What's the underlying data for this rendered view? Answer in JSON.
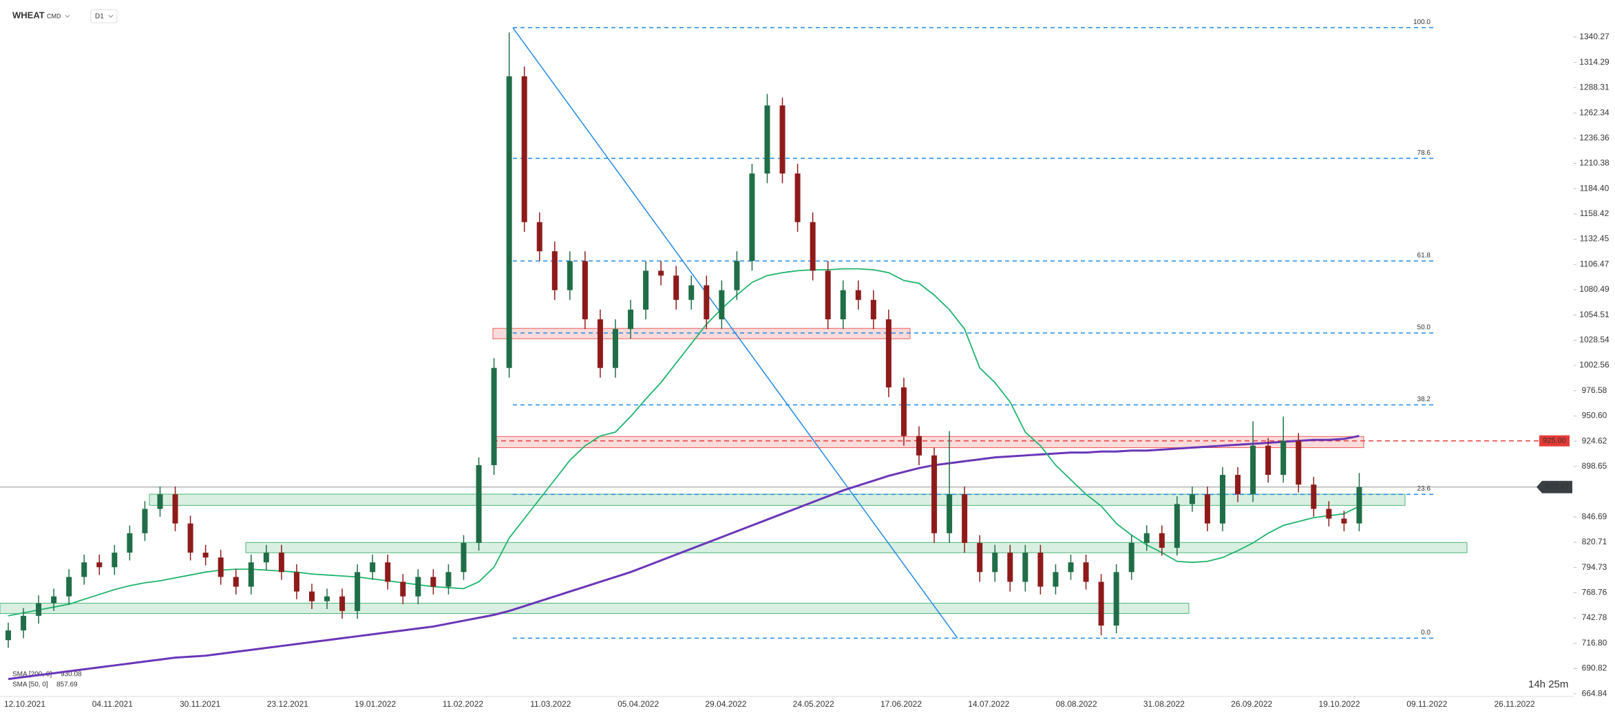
{
  "header": {
    "symbol": "WHEAT",
    "market": "CMD",
    "interval": "D1"
  },
  "chart_data": {
    "type": "candlestick",
    "x_labels": [
      "12.10.2021",
      "04.11.2021",
      "30.11.2021",
      "23.12.2021",
      "19.01.2022",
      "11.02.2022",
      "11.03.2022",
      "05.04.2022",
      "29.04.2022",
      "24.05.2022",
      "17.06.2022",
      "14.07.2022",
      "08.08.2022",
      "31.08.2022",
      "26.09.2022",
      "19.10.2022",
      "09.11.2022",
      "26.11.2022"
    ],
    "ylim": [
      662.1,
      1378.5
    ],
    "yticks": [
      664.84,
      690.82,
      {
        "value": 716.8,
        "label": "716.80"
      },
      742.78,
      768.76,
      794.73,
      820.71,
      846.69,
      898.65,
      924.62,
      {
        "value": 950.6,
        "label": "950.60"
      },
      976.58,
      1002.56,
      1028.54,
      1054.51,
      1080.49,
      1106.47,
      1132.45,
      1158.42,
      {
        "value": 1184.4,
        "label": "1184.40"
      },
      1210.38,
      1236.36,
      1262.34,
      1288.31,
      1314.29,
      1340.27
    ],
    "up_color": "#1f6e47",
    "down_color": "#8e1b1b",
    "open": [
      720,
      730,
      745,
      758,
      765,
      785,
      800,
      795,
      810,
      830,
      855,
      870,
      840,
      810,
      805,
      785,
      775,
      800,
      810,
      790,
      770,
      760,
      765,
      750,
      790,
      800,
      780,
      765,
      785,
      775,
      790,
      820,
      900,
      1000,
      1300,
      1150,
      1120,
      1080,
      1110,
      1050,
      1000,
      1040,
      1060,
      1100,
      1095,
      1070,
      1085,
      1050,
      1080,
      1110,
      1200,
      1270,
      1200,
      1150,
      1100,
      1050,
      1080,
      1070,
      1050,
      980,
      930,
      910,
      830,
      870,
      820,
      790,
      810,
      780,
      810,
      775,
      790,
      800,
      780,
      735,
      790,
      820,
      830,
      815,
      860,
      870,
      840,
      890,
      870,
      920,
      890,
      925,
      880,
      855,
      845,
      840
    ],
    "high": [
      738,
      753,
      766,
      773,
      793,
      808,
      808,
      818,
      838,
      863,
      878,
      878,
      848,
      818,
      813,
      793,
      808,
      818,
      818,
      798,
      778,
      773,
      773,
      798,
      808,
      808,
      788,
      793,
      793,
      798,
      828,
      908,
      1010,
      1345,
      1310,
      1160,
      1130,
      1120,
      1120,
      1060,
      1050,
      1070,
      1110,
      1110,
      1105,
      1095,
      1095,
      1090,
      1120,
      1210,
      1282,
      1278,
      1210,
      1160,
      1110,
      1090,
      1090,
      1080,
      1060,
      990,
      940,
      918,
      935,
      878,
      828,
      818,
      818,
      818,
      818,
      798,
      808,
      808,
      788,
      798,
      828,
      838,
      838,
      868,
      878,
      878,
      898,
      898,
      945,
      928,
      950,
      933,
      888,
      863,
      853,
      892
    ],
    "low": [
      712,
      722,
      737,
      750,
      757,
      777,
      787,
      787,
      802,
      822,
      847,
      832,
      802,
      797,
      777,
      767,
      767,
      792,
      782,
      762,
      752,
      752,
      742,
      742,
      782,
      772,
      757,
      757,
      767,
      767,
      782,
      812,
      890,
      990,
      1140,
      1110,
      1070,
      1070,
      1040,
      990,
      990,
      1030,
      1050,
      1085,
      1060,
      1060,
      1040,
      1040,
      1070,
      1100,
      1190,
      1190,
      1140,
      1090,
      1040,
      1040,
      1060,
      1040,
      970,
      920,
      900,
      820,
      820,
      810,
      780,
      780,
      770,
      770,
      767,
      767,
      782,
      772,
      725,
      727,
      782,
      812,
      807,
      807,
      852,
      832,
      832,
      862,
      862,
      882,
      882,
      872,
      847,
      837,
      832,
      832
    ],
    "close": [
      730,
      745,
      758,
      765,
      785,
      800,
      795,
      810,
      830,
      855,
      870,
      840,
      810,
      805,
      785,
      775,
      800,
      810,
      790,
      770,
      760,
      765,
      750,
      790,
      800,
      780,
      765,
      785,
      775,
      790,
      820,
      900,
      1000,
      1300,
      1150,
      1120,
      1080,
      1110,
      1050,
      1000,
      1040,
      1060,
      1100,
      1095,
      1070,
      1085,
      1050,
      1080,
      1110,
      1200,
      1270,
      1200,
      1150,
      1100,
      1050,
      1080,
      1070,
      1050,
      980,
      930,
      910,
      830,
      870,
      820,
      790,
      810,
      780,
      810,
      775,
      790,
      800,
      780,
      735,
      790,
      820,
      830,
      815,
      860,
      870,
      840,
      890,
      870,
      920,
      890,
      925,
      880,
      855,
      845,
      840,
      877.47
    ],
    "series": [
      {
        "name": "SMA [200, 0]",
        "color": "#6a35b8",
        "values": [
          680,
          682,
          684,
          686,
          688,
          690,
          692,
          694,
          696,
          698,
          700,
          702,
          703,
          704,
          706,
          708,
          710,
          712,
          714,
          716,
          718,
          720,
          722,
          724,
          726,
          728,
          730,
          732,
          734,
          737,
          740,
          743,
          746,
          750,
          755,
          760,
          765,
          770,
          775,
          780,
          785,
          790,
          796,
          802,
          808,
          814,
          820,
          826,
          832,
          838,
          844,
          850,
          856,
          862,
          868,
          874,
          879,
          884,
          889,
          893,
          897,
          900,
          902,
          904,
          906,
          908,
          909,
          910,
          911,
          912,
          913,
          913,
          914,
          914,
          915,
          915,
          916,
          917,
          918,
          919,
          920,
          921,
          922,
          923,
          924,
          925,
          926,
          926,
          927,
          930.08
        ]
      },
      {
        "name": "SMA [50, 0]",
        "color": "#1db36b",
        "values": [
          745,
          748,
          751,
          754,
          757,
          762,
          767,
          772,
          776,
          779,
          781,
          784,
          787,
          790,
          792,
          793,
          793,
          792,
          791,
          790,
          788,
          787,
          786,
          785,
          783,
          781,
          779,
          777,
          775,
          774,
          773,
          780,
          795,
          825,
          845,
          865,
          885,
          905,
          920,
          930,
          934,
          950,
          968,
          985,
          1005,
          1025,
          1045,
          1061,
          1075,
          1088,
          1095,
          1098,
          1100,
          1101,
          1101,
          1102,
          1102,
          1101,
          1098,
          1090,
          1087,
          1075,
          1060,
          1040,
          1000,
          985,
          965,
          934,
          920,
          900,
          885,
          870,
          858,
          840,
          828,
          818,
          810,
          801,
          800,
          801,
          805,
          812,
          820,
          830,
          838,
          842,
          846,
          848,
          850,
          857.69
        ]
      }
    ],
    "fib_color": "#1e88e5",
    "fib_levels": [
      {
        "label": "100.0",
        "price": 1350
      },
      {
        "label": "78.6",
        "price": 1215.6
      },
      {
        "label": "61.8",
        "price": 1110
      },
      {
        "label": "50.0",
        "price": 1036
      },
      {
        "label": "38.2",
        "price": 962
      },
      {
        "label": "23.6",
        "price": 870
      },
      {
        "label": "0.0",
        "price": 722
      }
    ],
    "zones": [
      {
        "low": 1030,
        "high": 1040.7,
        "color": "#e53935"
      },
      {
        "low": 918,
        "high": 929.5,
        "color": "#e53935"
      },
      {
        "low": 858.6,
        "high": 870.2,
        "color": "#26a65b"
      },
      {
        "low": 809.9,
        "high": 820.5,
        "color": "#26a65b"
      },
      {
        "low": 747.4,
        "high": 758,
        "color": "#26a65b"
      }
    ],
    "alert_level": {
      "value": 925,
      "label": "925.00",
      "color": "#e53935"
    },
    "last_price": {
      "value": 877.47,
      "color": "#3a3f44"
    },
    "countdown": "14h 25m"
  }
}
